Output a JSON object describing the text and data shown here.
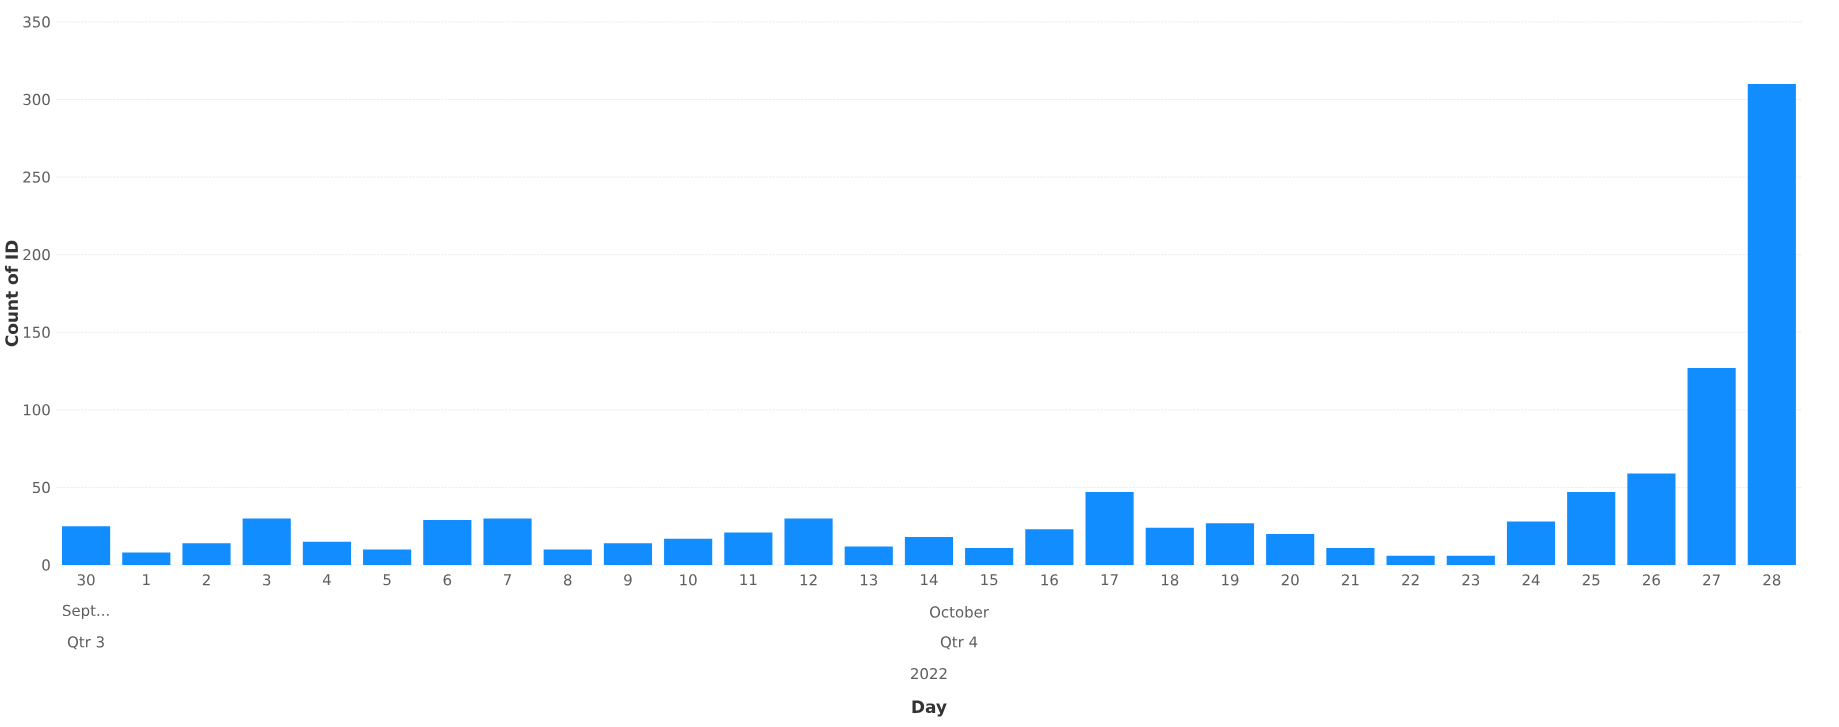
{
  "chart_data": {
    "type": "bar",
    "ylabel": "Count of ID",
    "categories": [
      "30",
      "1",
      "2",
      "3",
      "4",
      "5",
      "6",
      "7",
      "8",
      "9",
      "10",
      "11",
      "12",
      "13",
      "14",
      "15",
      "16",
      "17",
      "18",
      "19",
      "20",
      "21",
      "22",
      "23",
      "24",
      "25",
      "26",
      "27",
      "28"
    ],
    "values": [
      25,
      8,
      14,
      30,
      15,
      10,
      29,
      30,
      10,
      14,
      17,
      21,
      30,
      12,
      18,
      11,
      23,
      47,
      24,
      27,
      20,
      11,
      6,
      6,
      28,
      47,
      59,
      127,
      310
    ],
    "color": "#118dff",
    "ylim": [
      0,
      350
    ],
    "yticks": [
      0,
      50,
      100,
      150,
      200,
      250,
      300,
      350
    ],
    "grid": "y",
    "annotations": [
      "Sept...",
      "October",
      "Qtr 3",
      "Qtr 4",
      "2022",
      "Day"
    ]
  }
}
